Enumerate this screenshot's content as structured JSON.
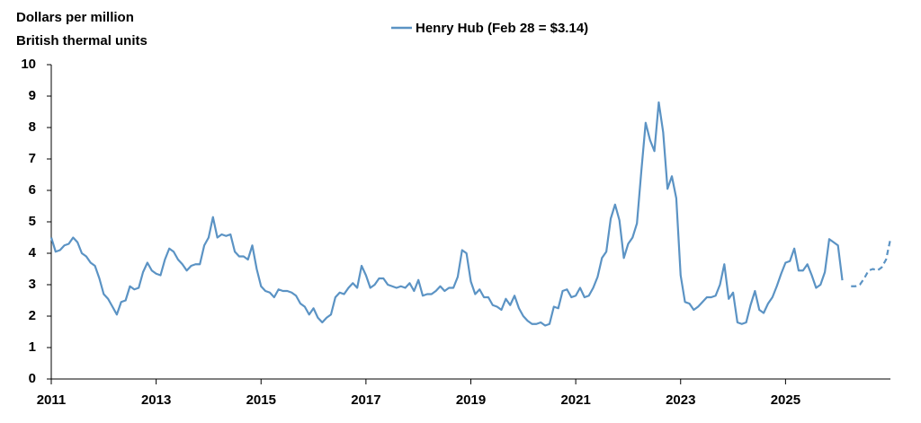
{
  "chart_data": {
    "type": "line",
    "ylabel": [
      "Dollars per million",
      "British thermal units"
    ],
    "xlim": [
      2011,
      2027
    ],
    "xticks": [
      2011,
      2013,
      2015,
      2017,
      2019,
      2021,
      2023,
      2025
    ],
    "ylim": [
      0,
      10
    ],
    "yticks": [
      0,
      1,
      2,
      3,
      4,
      5,
      6,
      7,
      8,
      9,
      10
    ],
    "legend": "top",
    "series": [
      {
        "name": "Henry Hub (Feb 28 = $3.14)",
        "color": "#5b93c4",
        "dash": false,
        "x": [
          2011,
          2011.083,
          2011.167,
          2011.25,
          2011.333,
          2011.417,
          2011.5,
          2011.583,
          2011.667,
          2011.75,
          2011.833,
          2011.917,
          2012,
          2012.083,
          2012.167,
          2012.25,
          2012.333,
          2012.417,
          2012.5,
          2012.583,
          2012.667,
          2012.75,
          2012.833,
          2012.917,
          2013,
          2013.083,
          2013.167,
          2013.25,
          2013.333,
          2013.417,
          2013.5,
          2013.583,
          2013.667,
          2013.75,
          2013.833,
          2013.917,
          2014,
          2014.083,
          2014.167,
          2014.25,
          2014.333,
          2014.417,
          2014.5,
          2014.583,
          2014.667,
          2014.75,
          2014.833,
          2014.917,
          2015,
          2015.083,
          2015.167,
          2015.25,
          2015.333,
          2015.417,
          2015.5,
          2015.583,
          2015.667,
          2015.75,
          2015.833,
          2015.917,
          2016,
          2016.083,
          2016.167,
          2016.25,
          2016.333,
          2016.417,
          2016.5,
          2016.583,
          2016.667,
          2016.75,
          2016.833,
          2016.917,
          2017,
          2017.083,
          2017.167,
          2017.25,
          2017.333,
          2017.417,
          2017.5,
          2017.583,
          2017.667,
          2017.75,
          2017.833,
          2017.917,
          2018,
          2018.083,
          2018.167,
          2018.25,
          2018.333,
          2018.417,
          2018.5,
          2018.583,
          2018.667,
          2018.75,
          2018.833,
          2018.917,
          2019,
          2019.083,
          2019.167,
          2019.25,
          2019.333,
          2019.417,
          2019.5,
          2019.583,
          2019.667,
          2019.75,
          2019.833,
          2019.917,
          2020,
          2020.083,
          2020.167,
          2020.25,
          2020.333,
          2020.417,
          2020.5,
          2020.583,
          2020.667,
          2020.75,
          2020.833,
          2020.917,
          2021,
          2021.083,
          2021.167,
          2021.25,
          2021.333,
          2021.417,
          2021.5,
          2021.583,
          2021.667,
          2021.75,
          2021.833,
          2021.917,
          2022,
          2022.083,
          2022.167,
          2022.25,
          2022.333,
          2022.417,
          2022.5,
          2022.583,
          2022.667,
          2022.75,
          2022.833,
          2022.917,
          2023,
          2023.083,
          2023.167,
          2023.25,
          2023.333,
          2023.417,
          2023.5,
          2023.583,
          2023.667,
          2023.75,
          2023.833,
          2023.917,
          2024,
          2024.083,
          2024.167,
          2024.25,
          2024.333,
          2024.417,
          2024.5,
          2024.583,
          2024.667,
          2024.75,
          2024.833,
          2024.917,
          2025,
          2025.083,
          2025.167,
          2025.25,
          2025.333,
          2025.417,
          2025.5,
          2025.583,
          2025.667,
          2025.75,
          2025.833,
          2025.917,
          2026,
          2026.083
        ],
        "values": [
          4.5,
          4.05,
          4.1,
          4.25,
          4.3,
          4.5,
          4.35,
          4.0,
          3.9,
          3.7,
          3.6,
          3.2,
          2.7,
          2.55,
          2.3,
          2.05,
          2.45,
          2.5,
          2.95,
          2.85,
          2.9,
          3.4,
          3.7,
          3.45,
          3.35,
          3.3,
          3.8,
          4.15,
          4.05,
          3.8,
          3.65,
          3.45,
          3.6,
          3.65,
          3.65,
          4.25,
          4.5,
          5.15,
          4.5,
          4.6,
          4.55,
          4.6,
          4.05,
          3.9,
          3.9,
          3.8,
          4.25,
          3.5,
          2.95,
          2.8,
          2.75,
          2.6,
          2.85,
          2.8,
          2.8,
          2.75,
          2.65,
          2.4,
          2.3,
          2.05,
          2.25,
          1.95,
          1.8,
          1.95,
          2.05,
          2.6,
          2.75,
          2.7,
          2.9,
          3.05,
          2.9,
          3.6,
          3.3,
          2.9,
          3.0,
          3.2,
          3.2,
          3.0,
          2.95,
          2.9,
          2.95,
          2.9,
          3.05,
          2.8,
          3.15,
          2.65,
          2.7,
          2.7,
          2.8,
          2.95,
          2.8,
          2.9,
          2.9,
          3.25,
          4.1,
          4.0,
          3.1,
          2.7,
          2.85,
          2.6,
          2.6,
          2.35,
          2.3,
          2.2,
          2.55,
          2.35,
          2.65,
          2.25,
          2.0,
          1.85,
          1.75,
          1.75,
          1.8,
          1.7,
          1.75,
          2.3,
          2.25,
          2.8,
          2.85,
          2.6,
          2.65,
          2.9,
          2.6,
          2.65,
          2.9,
          3.25,
          3.85,
          4.05,
          5.1,
          5.55,
          5.05,
          3.85,
          4.3,
          4.5,
          4.95,
          6.6,
          8.15,
          7.6,
          7.25,
          8.8,
          7.85,
          6.05,
          6.45,
          5.75,
          3.3,
          2.45,
          2.4,
          2.2,
          2.3,
          2.45,
          2.6,
          2.6,
          2.65,
          3.0,
          3.65,
          2.55,
          2.75,
          1.8,
          1.75,
          1.8,
          2.35,
          2.8,
          2.2,
          2.1,
          2.4,
          2.6,
          2.95,
          3.35,
          3.7,
          3.75,
          4.15,
          3.45,
          3.45,
          3.65,
          3.3,
          2.9,
          3.0,
          3.4,
          4.45,
          4.35,
          4.25,
          3.14
        ]
      },
      {
        "color": "#5b93c4",
        "dash": true,
        "x": [
          2026.25,
          2026.333,
          2026.417,
          2026.5,
          2026.583,
          2026.667,
          2026.75,
          2026.833,
          2026.917,
          2027
        ],
        "values": [
          2.95,
          2.95,
          3.0,
          3.2,
          3.45,
          3.5,
          3.45,
          3.55,
          3.8,
          4.45
        ]
      }
    ]
  }
}
